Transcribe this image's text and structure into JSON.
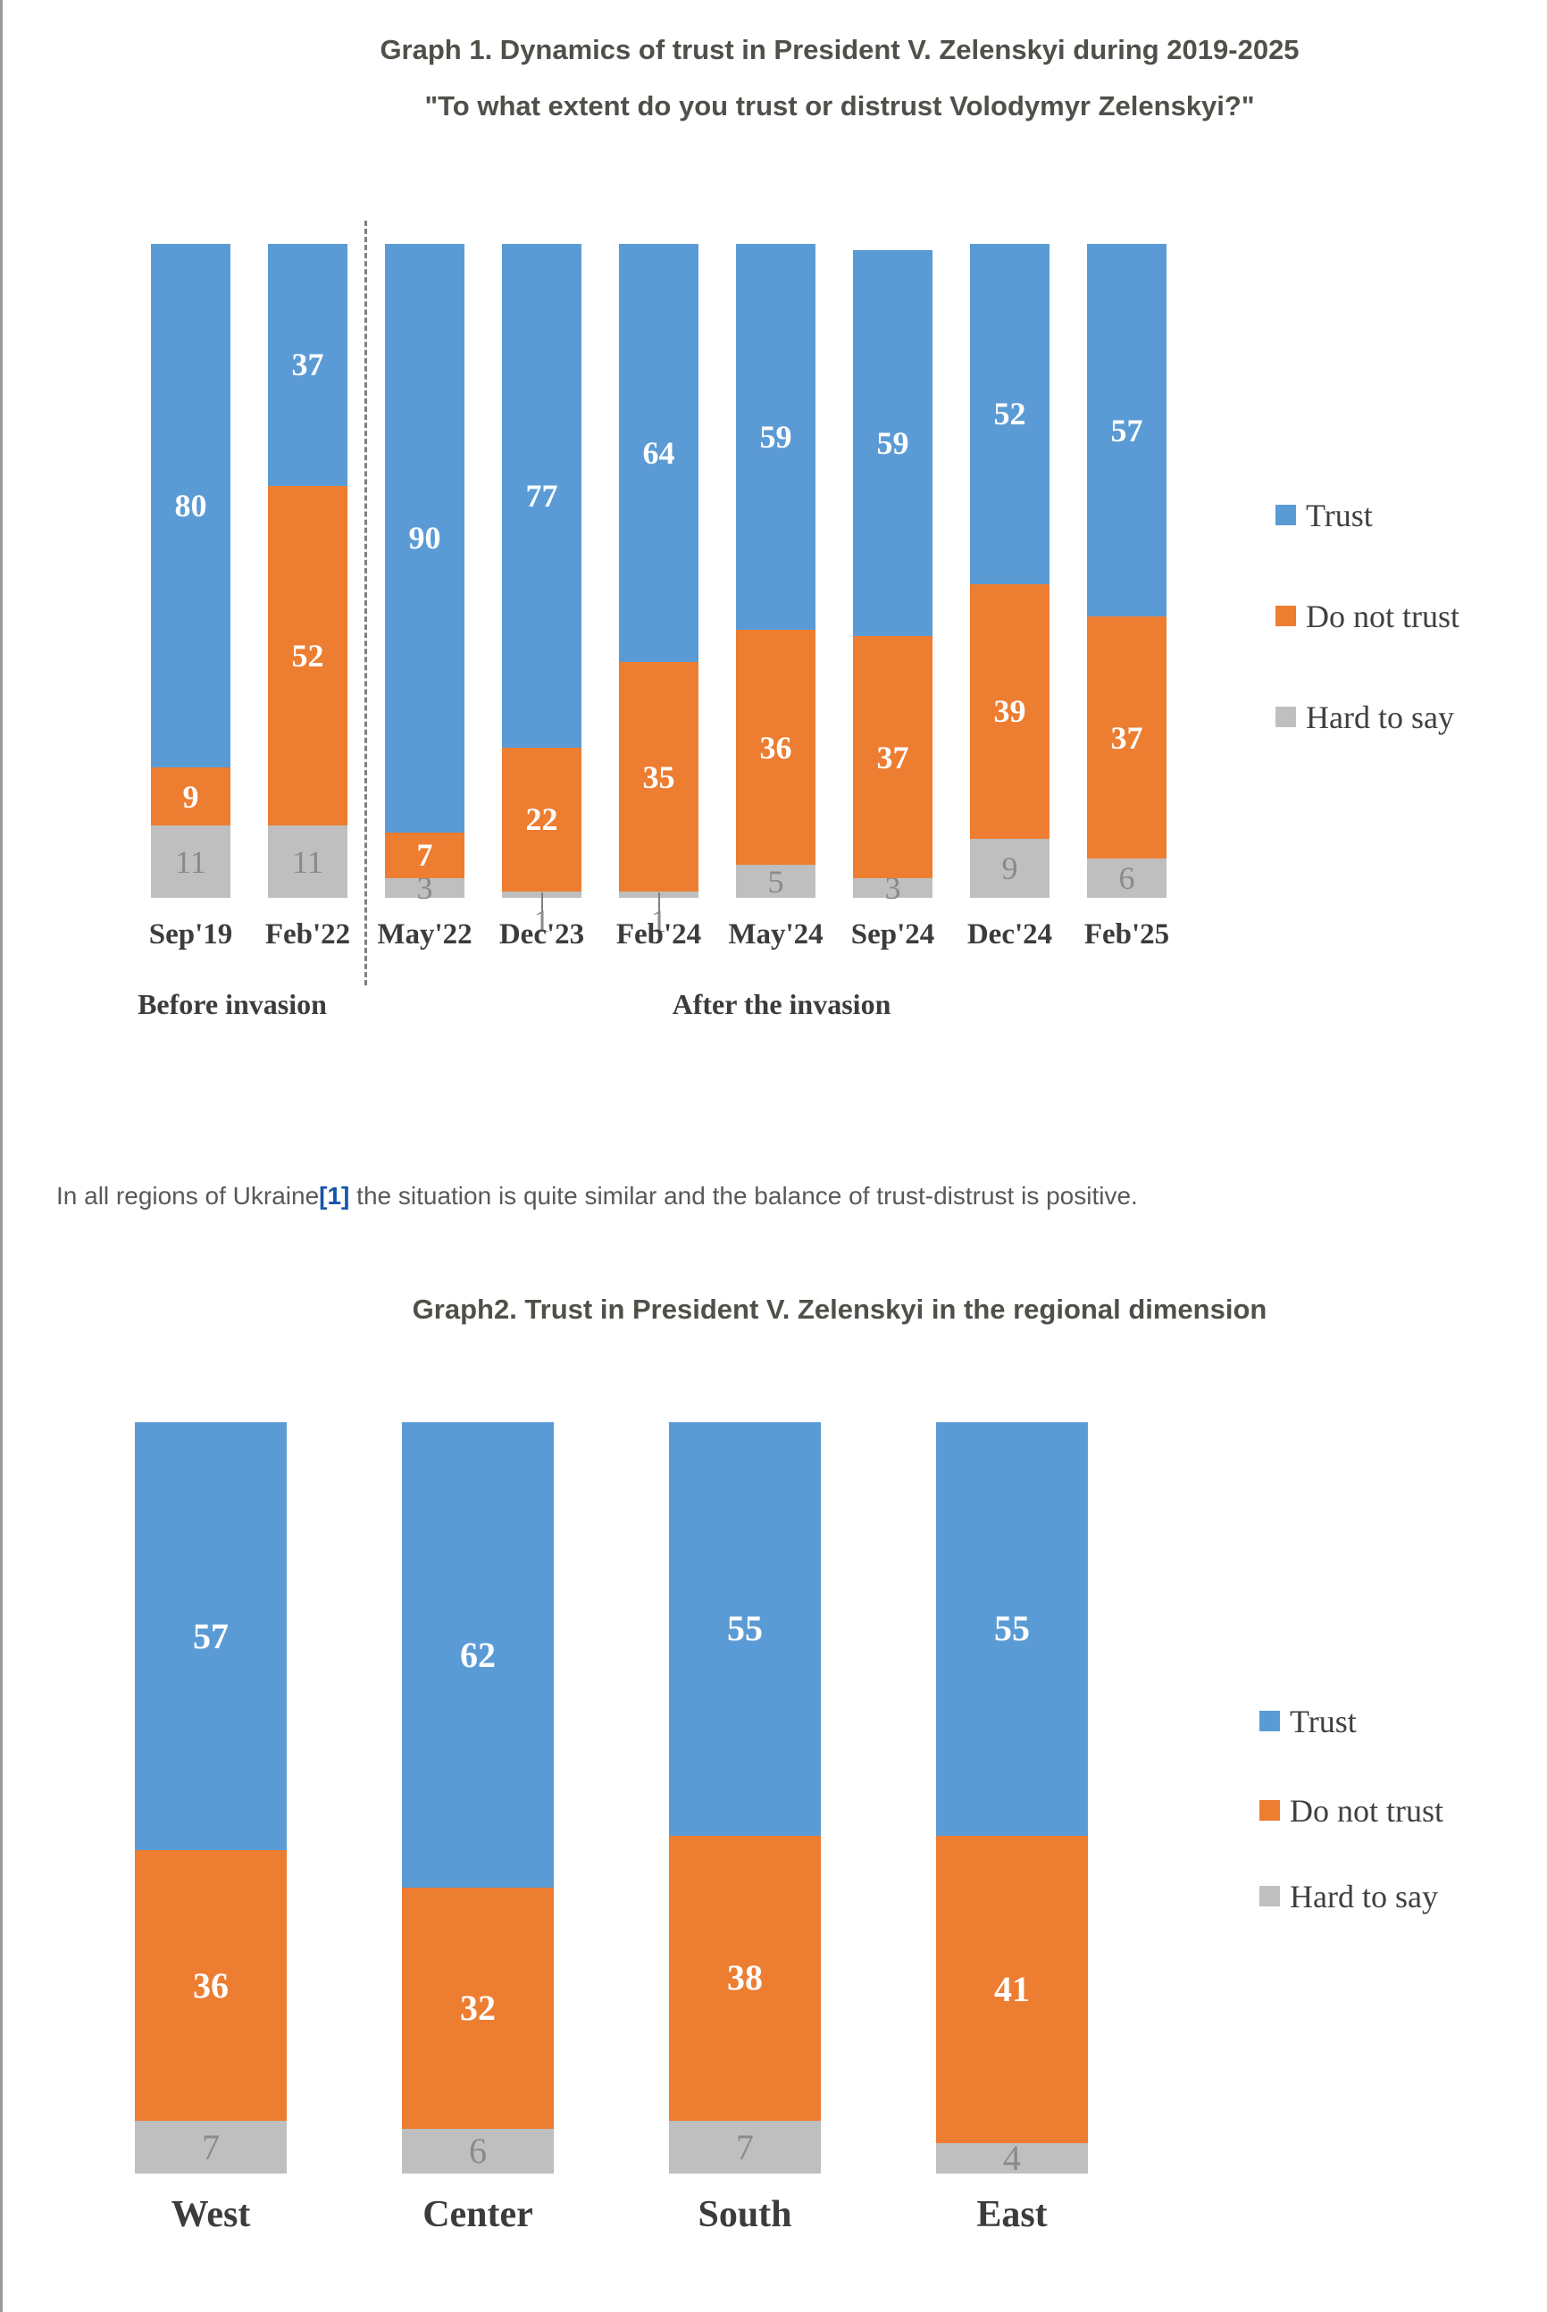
{
  "page": {
    "background": "#ffffff",
    "left_edge_color": "#9b9b9b"
  },
  "colors": {
    "trust": "#5B9BD5",
    "do_not_trust": "#ED7D31",
    "hard_to_say": "#BFBFBF",
    "title_text": "#50504a",
    "paragraph_text": "#595959",
    "link_blue": "#1656a8",
    "axis_text": "#3c3c3c",
    "gray_value_text": "#8a8a8a"
  },
  "paragraph": {
    "prefix": "In all regions of Ukraine",
    "link_text": "[1]",
    "suffix": " the situation is quite similar and the balance of trust-distrust is positive."
  },
  "chart_data": [
    {
      "type": "bar",
      "stacked": true,
      "title": "Graph 1. Dynamics of trust in President V. Zelenskyi during 2019-2025",
      "subtitle": "\"To what extent do you trust or distrust Volodymyr Zelenskyi?\"",
      "categories": [
        "Sep'19",
        "Feb'22",
        "May'22",
        "Dec'23",
        "Feb'24",
        "May'24",
        "Sep'24",
        "Dec'24",
        "Feb'25"
      ],
      "series": [
        {
          "name": "Trust",
          "color": "#5B9BD5",
          "values": [
            80,
            37,
            90,
            77,
            64,
            59,
            59,
            52,
            57
          ]
        },
        {
          "name": "Do not trust",
          "color": "#ED7D31",
          "values": [
            9,
            52,
            7,
            22,
            35,
            36,
            37,
            39,
            37
          ]
        },
        {
          "name": "Hard to say",
          "color": "#BFBFBF",
          "values": [
            11,
            11,
            3,
            1,
            1,
            5,
            3,
            9,
            6
          ]
        }
      ],
      "ylim": [
        0,
        100
      ],
      "grid": false,
      "legend_position": "right",
      "annotations": {
        "divider_after_category": "Feb'22",
        "before_label": "Before invasion",
        "after_label": "After the invasion"
      }
    },
    {
      "type": "bar",
      "stacked": true,
      "title": "Graph2. Trust in President V. Zelenskyi in the regional dimension",
      "categories": [
        "West",
        "Center",
        "South",
        "East"
      ],
      "series": [
        {
          "name": "Trust",
          "color": "#5B9BD5",
          "values": [
            57,
            62,
            55,
            55
          ]
        },
        {
          "name": "Do not trust",
          "color": "#ED7D31",
          "values": [
            36,
            32,
            38,
            41
          ]
        },
        {
          "name": "Hard to say",
          "color": "#BFBFBF",
          "values": [
            7,
            6,
            7,
            4
          ]
        }
      ],
      "ylim": [
        0,
        100
      ],
      "grid": false,
      "legend_position": "right"
    }
  ]
}
